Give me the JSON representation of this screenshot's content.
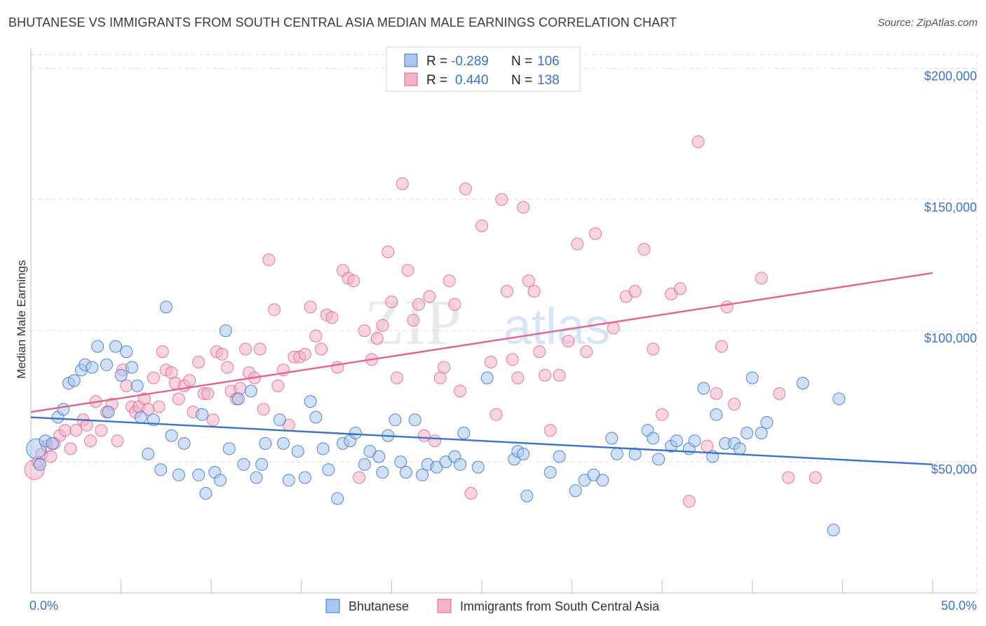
{
  "title": "BHUTANESE VS IMMIGRANTS FROM SOUTH CENTRAL ASIA MEDIAN MALE EARNINGS CORRELATION CHART",
  "source": "Source: ZipAtlas.com",
  "watermark": {
    "zip": "ZIP",
    "atlas": "atlas"
  },
  "colors": {
    "blue": "#3b73c9",
    "blue_fill": "#a9c6f0",
    "pink": "#e3628f",
    "pink_fill": "#f4b3c8",
    "grid": "#dddddd"
  },
  "legend": {
    "rows": [
      {
        "r_label": "R =",
        "r_value": "-0.289",
        "n_label": "N =",
        "n_value": "106"
      },
      {
        "r_label": "R =",
        "r_value": "0.440",
        "n_label": "N =",
        "n_value": "138"
      }
    ]
  },
  "chart_data": {
    "type": "scatter",
    "xlabel": "",
    "ylabel": "Median Male Earnings",
    "xlim": [
      0,
      50
    ],
    "ylim": [
      0,
      210000
    ],
    "x_tick_labels": [
      "0.0%",
      "50.0%"
    ],
    "y_ticks": [
      50000,
      100000,
      150000,
      200000
    ],
    "y_tick_labels": [
      "$50,000",
      "$100,000",
      "$150,000",
      "$200,000"
    ],
    "grid": true,
    "legend_position": "top-center",
    "series": [
      {
        "name": "Bhutanese",
        "color": "#3b73c9",
        "trend": {
          "x": [
            0,
            50
          ],
          "y": [
            67000,
            49000
          ]
        },
        "points": [
          [
            0.3,
            55000
          ],
          [
            0.5,
            49000
          ],
          [
            0.8,
            58000
          ],
          [
            1.2,
            57000
          ],
          [
            1.5,
            67000
          ],
          [
            1.8,
            70000
          ],
          [
            2.1,
            80000
          ],
          [
            2.4,
            81000
          ],
          [
            2.8,
            85000
          ],
          [
            3.0,
            87000
          ],
          [
            3.4,
            86000
          ],
          [
            3.7,
            94000
          ],
          [
            4.2,
            87000
          ],
          [
            4.3,
            69000
          ],
          [
            4.7,
            94000
          ],
          [
            5.0,
            83000
          ],
          [
            5.3,
            92000
          ],
          [
            5.6,
            86000
          ],
          [
            5.9,
            79000
          ],
          [
            6.1,
            67000
          ],
          [
            6.5,
            53000
          ],
          [
            6.8,
            66000
          ],
          [
            7.2,
            47000
          ],
          [
            7.5,
            109000
          ],
          [
            7.8,
            60000
          ],
          [
            8.2,
            45000
          ],
          [
            8.5,
            57000
          ],
          [
            9.3,
            45000
          ],
          [
            9.5,
            68000
          ],
          [
            9.7,
            38000
          ],
          [
            10.2,
            46000
          ],
          [
            10.5,
            43000
          ],
          [
            10.8,
            100000
          ],
          [
            11.0,
            55000
          ],
          [
            11.5,
            74000
          ],
          [
            11.8,
            49000
          ],
          [
            12.2,
            77000
          ],
          [
            12.5,
            44000
          ],
          [
            12.8,
            49000
          ],
          [
            13.0,
            57000
          ],
          [
            13.8,
            66000
          ],
          [
            14.0,
            57000
          ],
          [
            14.3,
            43000
          ],
          [
            14.8,
            54000
          ],
          [
            15.2,
            44000
          ],
          [
            15.5,
            73000
          ],
          [
            15.8,
            67000
          ],
          [
            16.2,
            55000
          ],
          [
            16.5,
            47000
          ],
          [
            17.0,
            36000
          ],
          [
            17.3,
            57000
          ],
          [
            17.7,
            58000
          ],
          [
            18.0,
            61000
          ],
          [
            18.5,
            49000
          ],
          [
            18.8,
            54000
          ],
          [
            19.3,
            52000
          ],
          [
            19.5,
            46000
          ],
          [
            19.8,
            60000
          ],
          [
            20.2,
            66000
          ],
          [
            20.5,
            50000
          ],
          [
            20.8,
            46000
          ],
          [
            21.3,
            66000
          ],
          [
            21.7,
            45000
          ],
          [
            22.0,
            49000
          ],
          [
            22.5,
            48000
          ],
          [
            23.0,
            50000
          ],
          [
            23.5,
            52000
          ],
          [
            23.8,
            49000
          ],
          [
            24.0,
            61000
          ],
          [
            24.8,
            48000
          ],
          [
            25.3,
            82000
          ],
          [
            26.8,
            51000
          ],
          [
            27.0,
            54000
          ],
          [
            27.3,
            53000
          ],
          [
            27.5,
            37000
          ],
          [
            28.8,
            46000
          ],
          [
            29.3,
            52000
          ],
          [
            30.2,
            39000
          ],
          [
            30.7,
            43000
          ],
          [
            31.2,
            45000
          ],
          [
            31.7,
            43000
          ],
          [
            32.2,
            59000
          ],
          [
            32.5,
            53000
          ],
          [
            33.5,
            53000
          ],
          [
            34.2,
            62000
          ],
          [
            34.5,
            59000
          ],
          [
            34.8,
            51000
          ],
          [
            35.5,
            56000
          ],
          [
            35.8,
            58000
          ],
          [
            36.5,
            55000
          ],
          [
            36.8,
            58000
          ],
          [
            37.3,
            78000
          ],
          [
            37.8,
            52000
          ],
          [
            38.0,
            68000
          ],
          [
            38.5,
            57000
          ],
          [
            39.0,
            57000
          ],
          [
            39.3,
            55000
          ],
          [
            39.7,
            61000
          ],
          [
            40.0,
            82000
          ],
          [
            40.5,
            61000
          ],
          [
            40.8,
            65000
          ],
          [
            42.8,
            80000
          ],
          [
            44.5,
            24000
          ],
          [
            44.8,
            74000
          ]
        ]
      },
      {
        "name": "Immigrants from South Central Asia",
        "color": "#e3628f",
        "trend": {
          "x": [
            0,
            50
          ],
          "y": [
            69000,
            122000
          ]
        },
        "points": [
          [
            0.2,
            47000
          ],
          [
            0.4,
            50000
          ],
          [
            0.6,
            53000
          ],
          [
            0.9,
            56000
          ],
          [
            1.1,
            52000
          ],
          [
            1.3,
            57000
          ],
          [
            1.6,
            60000
          ],
          [
            1.9,
            62000
          ],
          [
            2.2,
            55000
          ],
          [
            2.5,
            62000
          ],
          [
            2.9,
            66000
          ],
          [
            3.1,
            64000
          ],
          [
            3.3,
            58000
          ],
          [
            3.6,
            73000
          ],
          [
            3.9,
            62000
          ],
          [
            4.2,
            69000
          ],
          [
            4.5,
            72000
          ],
          [
            4.8,
            58000
          ],
          [
            5.1,
            85000
          ],
          [
            5.3,
            79000
          ],
          [
            5.6,
            71000
          ],
          [
            5.8,
            69000
          ],
          [
            6.0,
            71000
          ],
          [
            6.3,
            74000
          ],
          [
            6.5,
            70000
          ],
          [
            6.8,
            82000
          ],
          [
            7.1,
            71000
          ],
          [
            7.3,
            92000
          ],
          [
            7.5,
            85000
          ],
          [
            7.8,
            84000
          ],
          [
            8.0,
            80000
          ],
          [
            8.2,
            74000
          ],
          [
            8.5,
            79000
          ],
          [
            8.8,
            81000
          ],
          [
            9.0,
            69000
          ],
          [
            9.3,
            88000
          ],
          [
            9.6,
            76000
          ],
          [
            9.8,
            76000
          ],
          [
            10.1,
            66000
          ],
          [
            10.3,
            92000
          ],
          [
            10.6,
            91000
          ],
          [
            10.9,
            86000
          ],
          [
            11.1,
            77000
          ],
          [
            11.4,
            74000
          ],
          [
            11.6,
            78000
          ],
          [
            11.9,
            93000
          ],
          [
            12.1,
            84000
          ],
          [
            12.4,
            82000
          ],
          [
            12.7,
            93000
          ],
          [
            12.9,
            70000
          ],
          [
            13.2,
            127000
          ],
          [
            13.5,
            108000
          ],
          [
            13.7,
            79000
          ],
          [
            14.0,
            85000
          ],
          [
            14.3,
            64000
          ],
          [
            14.6,
            90000
          ],
          [
            14.9,
            90000
          ],
          [
            15.2,
            91000
          ],
          [
            15.5,
            109000
          ],
          [
            15.8,
            98000
          ],
          [
            16.1,
            93000
          ],
          [
            16.4,
            106000
          ],
          [
            16.7,
            105000
          ],
          [
            17.0,
            86000
          ],
          [
            17.3,
            123000
          ],
          [
            17.6,
            120000
          ],
          [
            17.9,
            119000
          ],
          [
            18.2,
            44000
          ],
          [
            18.5,
            100000
          ],
          [
            18.9,
            89000
          ],
          [
            19.2,
            97000
          ],
          [
            19.5,
            102000
          ],
          [
            19.8,
            130000
          ],
          [
            20.0,
            111000
          ],
          [
            20.3,
            82000
          ],
          [
            20.6,
            156000
          ],
          [
            20.9,
            123000
          ],
          [
            21.2,
            104000
          ],
          [
            21.5,
            110000
          ],
          [
            21.8,
            60000
          ],
          [
            22.1,
            113000
          ],
          [
            22.4,
            58000
          ],
          [
            22.7,
            82000
          ],
          [
            22.9,
            86000
          ],
          [
            23.2,
            119000
          ],
          [
            23.5,
            110000
          ],
          [
            23.8,
            77000
          ],
          [
            24.1,
            154000
          ],
          [
            24.4,
            38000
          ],
          [
            25.0,
            140000
          ],
          [
            25.5,
            88000
          ],
          [
            25.8,
            68000
          ],
          [
            26.1,
            150000
          ],
          [
            26.4,
            115000
          ],
          [
            26.7,
            89000
          ],
          [
            27.0,
            82000
          ],
          [
            27.3,
            147000
          ],
          [
            27.6,
            119000
          ],
          [
            27.9,
            115000
          ],
          [
            28.2,
            92000
          ],
          [
            28.5,
            83000
          ],
          [
            28.8,
            62000
          ],
          [
            29.3,
            83000
          ],
          [
            29.8,
            96000
          ],
          [
            30.3,
            133000
          ],
          [
            30.8,
            92000
          ],
          [
            31.3,
            137000
          ],
          [
            32.3,
            101000
          ],
          [
            33.0,
            113000
          ],
          [
            33.5,
            115000
          ],
          [
            34.0,
            131000
          ],
          [
            34.5,
            93000
          ],
          [
            35.0,
            68000
          ],
          [
            35.5,
            114000
          ],
          [
            36.0,
            116000
          ],
          [
            36.5,
            35000
          ],
          [
            37.0,
            172000
          ],
          [
            37.5,
            56000
          ],
          [
            38.0,
            76000
          ],
          [
            38.3,
            94000
          ],
          [
            38.6,
            109000
          ],
          [
            39.0,
            72000
          ],
          [
            40.5,
            120000
          ],
          [
            41.5,
            76000
          ],
          [
            42.0,
            44000
          ],
          [
            43.5,
            44000
          ]
        ]
      }
    ]
  }
}
